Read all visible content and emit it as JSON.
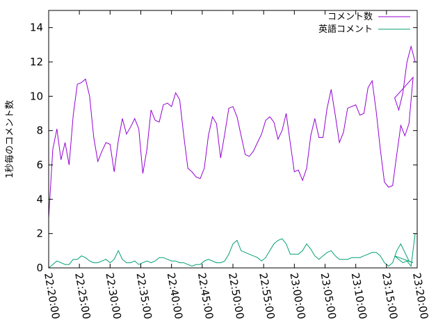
{
  "chart_data": {
    "type": "line",
    "title": "",
    "xlabel": "",
    "ylabel": "1秒毎のコメント数",
    "ylim": [
      0,
      15
    ],
    "yticks": [
      "0",
      "2",
      "4",
      "6",
      "8",
      "10",
      "12",
      "14"
    ],
    "xticks": [
      "22:20:00",
      "22:25:00",
      "22:30:00",
      "22:35:00",
      "22:40:00",
      "22:45:00",
      "22:50:00",
      "22:55:00",
      "23:00:00",
      "23:05:00",
      "23:10:00",
      "23:15:00",
      "23:20:00"
    ],
    "xlim": [
      "22:20:00",
      "23:20:00"
    ],
    "legend_position": "top-right",
    "grid": false,
    "x": [
      "22:20:00",
      "22:20:40",
      "22:21:20",
      "22:22:00",
      "22:22:40",
      "22:23:20",
      "22:24:00",
      "22:24:40",
      "22:25:20",
      "22:26:00",
      "22:26:40",
      "22:27:20",
      "22:28:00",
      "22:28:40",
      "22:29:20",
      "22:30:00",
      "22:30:40",
      "22:31:20",
      "22:32:00",
      "22:32:40",
      "22:33:20",
      "22:34:00",
      "22:34:40",
      "22:35:20",
      "22:36:00",
      "22:36:40",
      "22:37:20",
      "22:38:00",
      "22:38:40",
      "22:39:20",
      "22:40:00",
      "22:40:40",
      "22:41:20",
      "22:42:00",
      "22:42:40",
      "22:43:20",
      "22:44:00",
      "22:44:40",
      "22:45:20",
      "22:46:00",
      "22:46:40",
      "22:47:20",
      "22:48:00",
      "22:48:40",
      "22:49:20",
      "22:50:00",
      "22:50:40",
      "22:51:20",
      "22:52:00",
      "22:52:40",
      "22:53:20",
      "22:54:00",
      "22:54:40",
      "22:55:20",
      "22:56:00",
      "22:56:40",
      "22:57:20",
      "22:58:00",
      "22:58:40",
      "22:59:20",
      "23:00:00",
      "23:00:40",
      "23:01:20",
      "23:02:00",
      "23:02:40",
      "23:03:20",
      "23:04:00",
      "23:04:40",
      "23:05:20",
      "23:06:00",
      "23:06:40",
      "23:07:20",
      "23:08:00",
      "23:08:40",
      "23:09:20",
      "23:10:00",
      "23:10:40",
      "23:11:20",
      "23:12:00",
      "23:12:40",
      "23:13:20",
      "23:14:00",
      "23:14:40",
      "23:15:20",
      "23:16:00",
      "23:16:40",
      "23:17:20",
      "23:18:00",
      "23:18:40",
      "23:19:20"
    ],
    "series": [
      {
        "name": "コメント数",
        "color": "#9400d3",
        "values": [
          2.9,
          6.9,
          8.1,
          6.3,
          7.3,
          6.0,
          8.9,
          10.7,
          10.8,
          11.0,
          10.0,
          7.6,
          6.2,
          6.8,
          7.3,
          7.2,
          5.6,
          7.4,
          8.7,
          7.8,
          8.2,
          8.7,
          8.1,
          5.5,
          6.9,
          9.2,
          8.6,
          8.5,
          9.5,
          9.6,
          9.4,
          10.2,
          9.8,
          7.7,
          5.8,
          5.6,
          5.3,
          5.2,
          5.8,
          7.7,
          8.8,
          8.4,
          6.4,
          7.8,
          9.3,
          9.4,
          8.8,
          7.7,
          6.6,
          6.5,
          6.8,
          7.3,
          7.8,
          8.6,
          8.8,
          8.5,
          7.5,
          8.0,
          9.0,
          7.3,
          5.6,
          5.7,
          5.1,
          5.8,
          7.7,
          8.7,
          7.6,
          7.6,
          9.3,
          10.4,
          8.9,
          7.3,
          7.9,
          9.3,
          9.4,
          9.5,
          8.9,
          9.0,
          10.5,
          10.9,
          9.1,
          6.9,
          5.0,
          4.7,
          4.8,
          6.6,
          8.3,
          7.7,
          8.4,
          11.1
        ]
      },
      {
        "name": "英語コメント",
        "color": "#009e73",
        "values": [
          0.0,
          0.2,
          0.4,
          0.3,
          0.2,
          0.2,
          0.5,
          0.5,
          0.7,
          0.6,
          0.4,
          0.3,
          0.3,
          0.4,
          0.5,
          0.3,
          0.5,
          1.0,
          0.5,
          0.3,
          0.3,
          0.4,
          0.2,
          0.3,
          0.4,
          0.3,
          0.4,
          0.6,
          0.6,
          0.5,
          0.4,
          0.4,
          0.3,
          0.3,
          0.2,
          0.1,
          0.2,
          0.2,
          0.4,
          0.5,
          0.4,
          0.3,
          0.3,
          0.4,
          0.8,
          1.4,
          1.6,
          1.0,
          0.9,
          0.8,
          0.7,
          0.6,
          0.4,
          0.6,
          1.0,
          1.4,
          1.6,
          1.7,
          1.4,
          0.8,
          0.8,
          0.8,
          1.0,
          1.4,
          1.1,
          0.7,
          0.5,
          0.7,
          0.9,
          1.0,
          0.7,
          0.5,
          0.5,
          0.5,
          0.6,
          0.6,
          0.6,
          0.7,
          0.8,
          0.9,
          0.9,
          0.7,
          0.3,
          0.1,
          0.3,
          1.0,
          1.4,
          0.9,
          0.4,
          0.3
        ]
      }
    ],
    "tail": {
      "x": [
        "23:19:20",
        "23:17:00",
        "23:17:40",
        "23:18:20",
        "23:19:00",
        "23:19:40"
      ],
      "series0": [
        11.1,
        9.2,
        11.1,
        10.9,
        9.6,
        9.9
      ],
      "series1": [
        0.3,
        0.3,
        0.3,
        0.3,
        0.4,
        0.7
      ]
    },
    "tail2": {
      "x": [
        "23:16:20",
        "23:17:00",
        "23:17:40",
        "23:18:20",
        "23:19:00",
        "23:19:40"
      ],
      "series0": [
        9.9,
        9.2,
        10.2,
        12.0,
        12.9,
        12.0
      ],
      "series1": [
        0.7,
        0.5,
        0.3,
        0.4,
        0.1,
        2.0
      ]
    }
  }
}
